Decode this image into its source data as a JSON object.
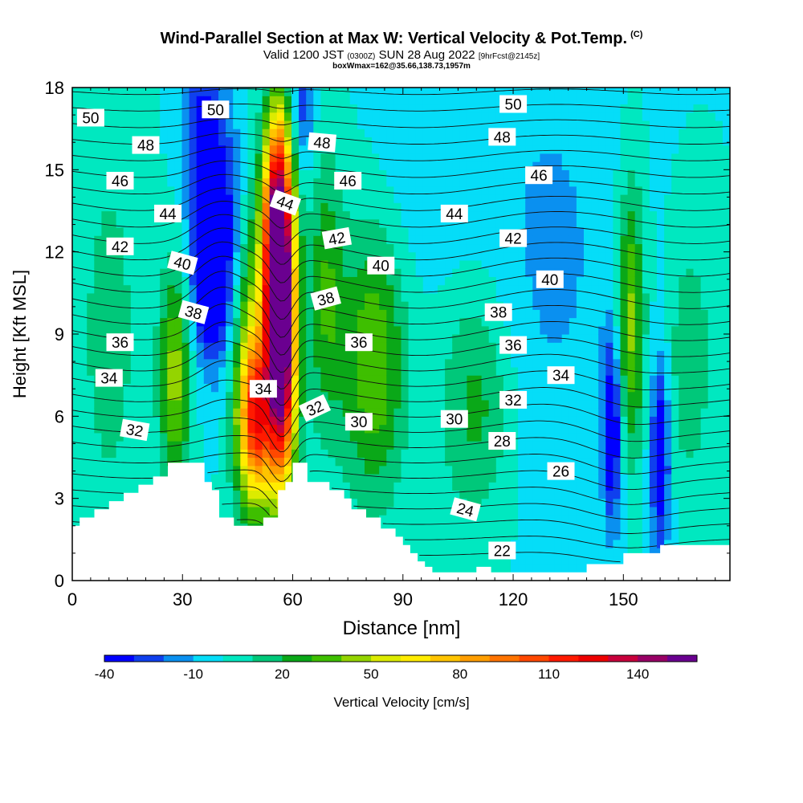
{
  "title": {
    "main": "Wind-Parallel Section at Max W: Vertical Velocity & Pot.Temp.",
    "copyright": "(C)",
    "valid_prefix": "Valid 1200 JST",
    "valid_z": "(0300Z)",
    "valid_date": "SUN 28 Aug 2022",
    "forecast": "[9hrFcst@2145z]",
    "box": "boxWmax=162@35.66,138.73,1957m"
  },
  "chart_data": {
    "type": "heatmap",
    "xlabel": "Distance [nm]",
    "ylabel": "Height [Kft MSL]",
    "xlim": [
      0,
      179
    ],
    "ylim": [
      0,
      18
    ],
    "x_ticks": [
      0,
      30,
      60,
      90,
      120,
      150
    ],
    "y_ticks": [
      0,
      3,
      6,
      9,
      12,
      15,
      18
    ],
    "colorbar": {
      "label": "Vertical Velocity [cm/s]",
      "tick_labels": [
        "-40",
        "-10",
        "20",
        "50",
        "80",
        "110",
        "140"
      ],
      "tick_values": [
        -40,
        -10,
        20,
        50,
        80,
        110,
        140
      ],
      "levels": [
        -40,
        -30,
        -20,
        -10,
        0,
        10,
        20,
        30,
        40,
        50,
        60,
        70,
        80,
        90,
        100,
        110,
        120,
        130,
        140,
        150,
        160
      ],
      "colors": [
        "#0000ff",
        "#0f40ee",
        "#0a90f0",
        "#05ddf8",
        "#00e8c0",
        "#00c87a",
        "#0aa818",
        "#3ebf00",
        "#94d400",
        "#dceb00",
        "#ffec00",
        "#ffc400",
        "#ff9e00",
        "#ff7400",
        "#ff4800",
        "#ff1a00",
        "#ee0000",
        "#c8003c",
        "#980066",
        "#6a0090"
      ]
    },
    "background_w": 0,
    "w_features": [
      {
        "x": 57,
        "y": 8.5,
        "sx": 2.8,
        "sy": 3.6,
        "w": 160
      },
      {
        "x": 55.5,
        "y": 12.2,
        "sx": 2.5,
        "sy": 2.8,
        "w": 100
      },
      {
        "x": 50,
        "y": 5.8,
        "sx": 3.2,
        "sy": 2.0,
        "w": 80
      },
      {
        "x": 49,
        "y": 8.5,
        "sx": 4.0,
        "sy": 4.0,
        "w": 50
      },
      {
        "x": 57,
        "y": 15,
        "sx": 3.0,
        "sy": 2.5,
        "w": 45
      },
      {
        "x": 28,
        "y": 7.5,
        "sx": 3.0,
        "sy": 2.8,
        "w": 45
      },
      {
        "x": 82,
        "y": 8.0,
        "sx": 6.0,
        "sy": 3.5,
        "w": 40
      },
      {
        "x": 69,
        "y": 10.5,
        "sx": 3.5,
        "sy": 3.5,
        "w": 30
      },
      {
        "x": 110,
        "y": 6.5,
        "sx": 7.0,
        "sy": 3.0,
        "w": 25
      },
      {
        "x": 152,
        "y": 9.5,
        "sx": 2.6,
        "sy": 3.5,
        "w": 45
      },
      {
        "x": 168,
        "y": 8.0,
        "sx": 4.0,
        "sy": 3.0,
        "w": 20
      },
      {
        "x": 40,
        "y": 12.5,
        "sx": 5.0,
        "sy": 3.2,
        "w": -45
      },
      {
        "x": 37,
        "y": 10.5,
        "sx": 3.0,
        "sy": 1.5,
        "w": -30
      },
      {
        "x": 35,
        "y": 16.5,
        "sx": 3.5,
        "sy": 2.5,
        "w": -25
      },
      {
        "x": 62,
        "y": 17.2,
        "sx": 2.5,
        "sy": 2.0,
        "w": -30
      },
      {
        "x": 147,
        "y": 5.5,
        "sx": 1.8,
        "sy": 2.5,
        "w": -45
      },
      {
        "x": 160,
        "y": 4.5,
        "sx": 1.8,
        "sy": 2.5,
        "w": -45
      },
      {
        "x": 130,
        "y": 12,
        "sx": 14,
        "sy": 6,
        "w": -12
      },
      {
        "x": 95,
        "y": 15,
        "sx": 10,
        "sy": 3,
        "w": -8
      },
      {
        "x": 10,
        "y": 9,
        "sx": 6,
        "sy": 5,
        "w": 15
      }
    ],
    "terrain": {
      "x": [
        0,
        2,
        2,
        6,
        6,
        10,
        10,
        14,
        14,
        18,
        18,
        22,
        22,
        26,
        26,
        36,
        36,
        38,
        38,
        40,
        40,
        44,
        44,
        46,
        46,
        52,
        52,
        56,
        56,
        58,
        58,
        60,
        60,
        64,
        64,
        70,
        70,
        74,
        74,
        76,
        76,
        80,
        80,
        84,
        84,
        88,
        88,
        90,
        90,
        92,
        92,
        94,
        94,
        96,
        96,
        98,
        98,
        104,
        104,
        110,
        110,
        114,
        114,
        120,
        120,
        140,
        140,
        150,
        150,
        160,
        160,
        170,
        170,
        179
      ],
      "h": [
        2.0,
        2.0,
        2.3,
        2.3,
        2.6,
        2.6,
        2.9,
        2.9,
        3.2,
        3.2,
        3.5,
        3.5,
        3.8,
        3.8,
        4.3,
        4.3,
        3.6,
        3.6,
        3.3,
        3.3,
        2.3,
        2.3,
        2.0,
        2.0,
        2.0,
        2.0,
        2.3,
        2.3,
        3.3,
        3.3,
        3.6,
        3.6,
        4.3,
        4.3,
        3.6,
        3.6,
        3.3,
        3.3,
        3.0,
        3.0,
        2.6,
        2.6,
        2.3,
        2.3,
        1.9,
        1.9,
        1.6,
        1.6,
        1.3,
        1.3,
        1.0,
        1.0,
        0.7,
        0.7,
        0.5,
        0.5,
        0.3,
        0.3,
        0.3,
        0.3,
        0.5,
        0.5,
        0.3,
        0.3,
        0.3,
        0.3,
        0.6,
        0.6,
        1.0,
        1.0,
        1.3,
        1.3,
        1.3,
        1.3
      ]
    },
    "theta_levels": [
      22,
      23,
      24,
      25,
      26,
      27,
      28,
      29,
      30,
      31,
      32,
      33,
      34,
      35,
      36,
      37,
      38,
      39,
      40,
      41,
      42,
      43,
      44,
      45,
      46,
      47,
      48,
      49,
      50,
      51
    ],
    "theta_labels": [
      {
        "text": "50",
        "x": 5,
        "y": 16.9,
        "rot": 0
      },
      {
        "text": "50",
        "x": 39,
        "y": 17.2,
        "rot": 0
      },
      {
        "text": "50",
        "x": 120,
        "y": 17.4,
        "rot": 0
      },
      {
        "text": "48",
        "x": 20,
        "y": 15.9,
        "rot": 0
      },
      {
        "text": "48",
        "x": 68,
        "y": 16.0,
        "rot": 5
      },
      {
        "text": "48",
        "x": 117,
        "y": 16.2,
        "rot": 0
      },
      {
        "text": "46",
        "x": 13,
        "y": 14.6,
        "rot": 0
      },
      {
        "text": "46",
        "x": 75,
        "y": 14.6,
        "rot": 0
      },
      {
        "text": "46",
        "x": 127,
        "y": 14.8,
        "rot": 0
      },
      {
        "text": "44",
        "x": 26,
        "y": 13.4,
        "rot": 0
      },
      {
        "text": "44",
        "x": 58,
        "y": 13.8,
        "rot": 20
      },
      {
        "text": "44",
        "x": 104,
        "y": 13.4,
        "rot": 0
      },
      {
        "text": "42",
        "x": 13,
        "y": 12.2,
        "rot": 0
      },
      {
        "text": "42",
        "x": 72,
        "y": 12.5,
        "rot": -10
      },
      {
        "text": "42",
        "x": 120,
        "y": 12.5,
        "rot": 0
      },
      {
        "text": "40",
        "x": 30,
        "y": 11.6,
        "rot": 15
      },
      {
        "text": "40",
        "x": 84,
        "y": 11.5,
        "rot": 0
      },
      {
        "text": "40",
        "x": 130,
        "y": 11.0,
        "rot": 0
      },
      {
        "text": "38",
        "x": 33,
        "y": 9.8,
        "rot": 15
      },
      {
        "text": "38",
        "x": 69,
        "y": 10.3,
        "rot": -15
      },
      {
        "text": "38",
        "x": 116,
        "y": 9.8,
        "rot": 0
      },
      {
        "text": "36",
        "x": 13,
        "y": 8.7,
        "rot": 0
      },
      {
        "text": "36",
        "x": 78,
        "y": 8.7,
        "rot": 0
      },
      {
        "text": "36",
        "x": 120,
        "y": 8.6,
        "rot": 0
      },
      {
        "text": "34",
        "x": 10,
        "y": 7.4,
        "rot": 0
      },
      {
        "text": "34",
        "x": 52,
        "y": 7.0,
        "rot": 0
      },
      {
        "text": "34",
        "x": 133,
        "y": 7.5,
        "rot": 0
      },
      {
        "text": "32",
        "x": 17,
        "y": 5.5,
        "rot": 10
      },
      {
        "text": "32",
        "x": 66,
        "y": 6.3,
        "rot": -25
      },
      {
        "text": "32",
        "x": 120,
        "y": 6.6,
        "rot": 0
      },
      {
        "text": "30",
        "x": 78,
        "y": 5.8,
        "rot": 0
      },
      {
        "text": "30",
        "x": 104,
        "y": 5.9,
        "rot": 0
      },
      {
        "text": "28",
        "x": 117,
        "y": 5.1,
        "rot": 0
      },
      {
        "text": "26",
        "x": 133,
        "y": 4.0,
        "rot": 0
      },
      {
        "text": "24",
        "x": 107,
        "y": 2.6,
        "rot": 15
      },
      {
        "text": "22",
        "x": 117,
        "y": 1.1,
        "rot": 0
      }
    ]
  }
}
